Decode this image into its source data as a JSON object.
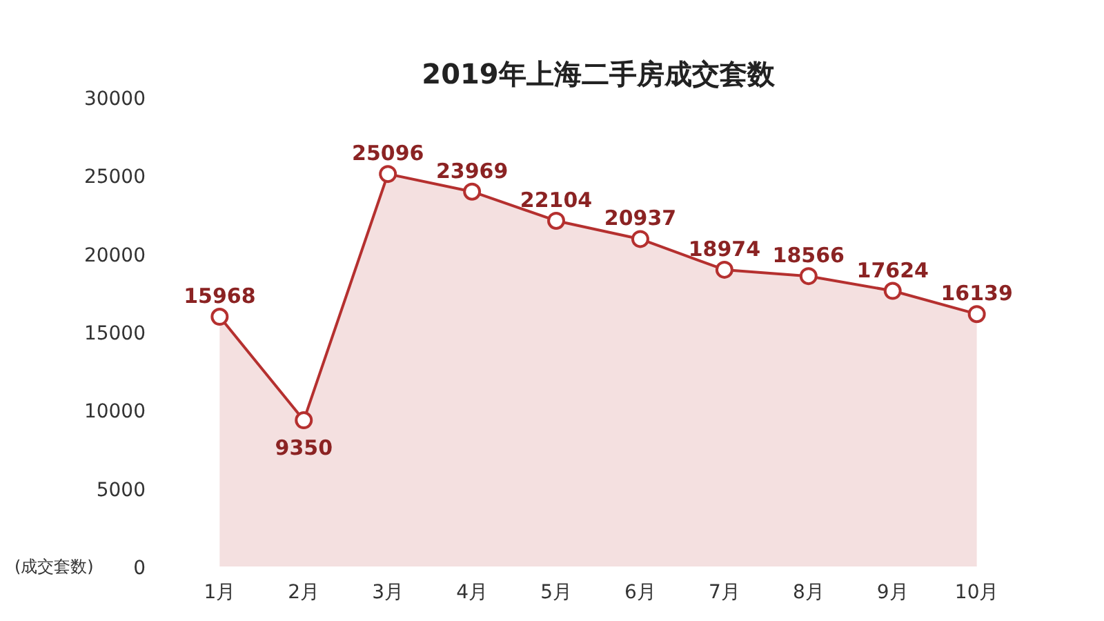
{
  "chart_data": {
    "type": "area",
    "title": "2019年上海二手房成交套数",
    "ylabel": "(成交套数)",
    "categories": [
      "1月",
      "2月",
      "3月",
      "4月",
      "5月",
      "6月",
      "7月",
      "8月",
      "9月",
      "10月"
    ],
    "series": [
      {
        "color": "#b5302f",
        "values": [
          15968,
          9350,
          25096,
          23969,
          22104,
          20937,
          18974,
          18566,
          17624,
          16139
        ]
      }
    ],
    "ylim": [
      0,
      30000
    ],
    "yticks": [
      0,
      5000,
      10000,
      15000,
      20000,
      25000,
      30000
    ],
    "grid": false,
    "marker": "circle",
    "line_style": "solid",
    "data_labels": true
  }
}
